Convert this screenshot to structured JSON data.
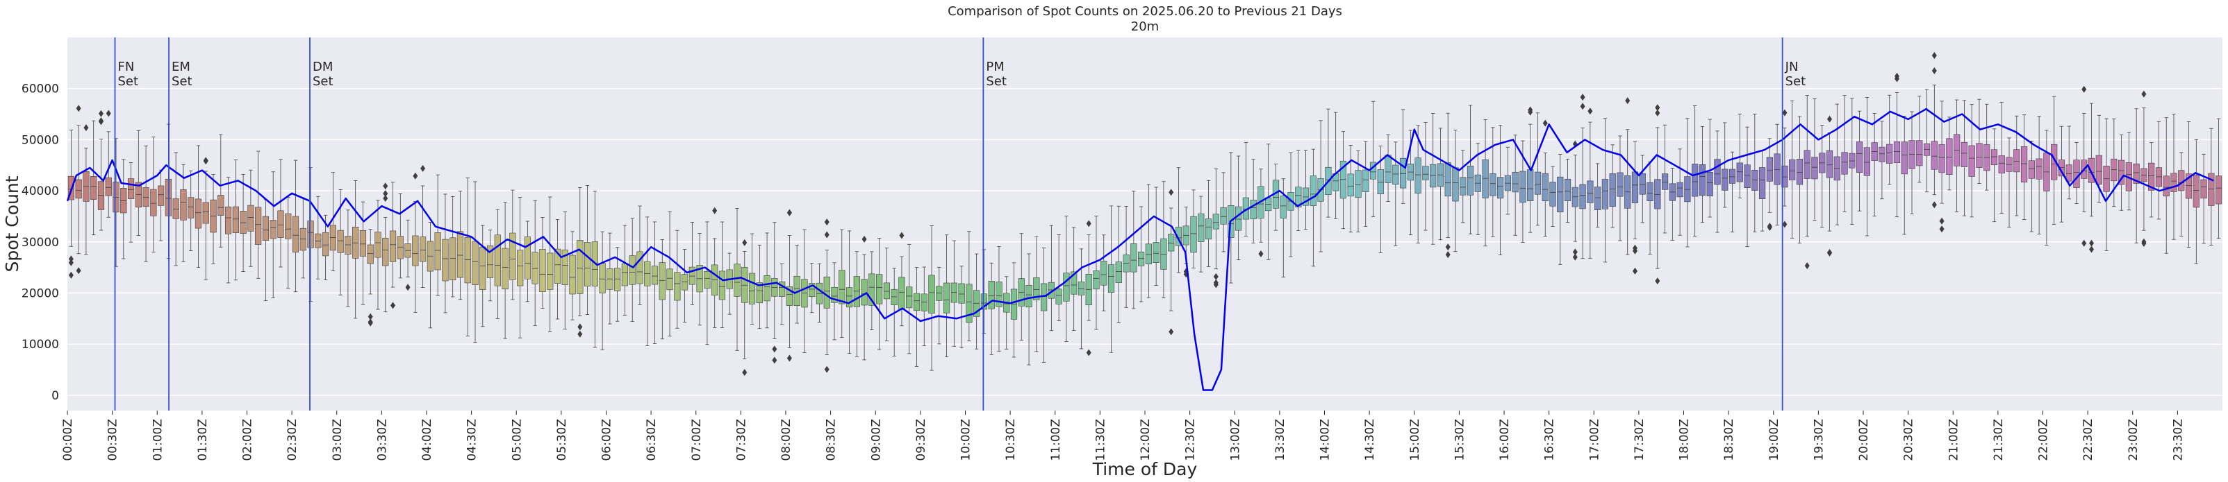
{
  "chart_data": {
    "type": "box",
    "title": "Comparison of Spot Counts on 2025.06.20 to Previous 21 Days",
    "subtitle": "20m",
    "xlabel": "Time of Day",
    "ylabel": "Spot Count",
    "ylim": [
      -3000,
      70000
    ],
    "yticks": [
      0,
      10000,
      20000,
      30000,
      40000,
      50000,
      60000
    ],
    "ytick_labels": [
      "0",
      "10000",
      "20000",
      "30000",
      "40000",
      "50000",
      "60000"
    ],
    "x_range_hours": [
      0,
      24
    ],
    "xtick_labels": [
      "00:00Z",
      "00:30Z",
      "01:00Z",
      "01:30Z",
      "02:00Z",
      "02:30Z",
      "03:00Z",
      "03:30Z",
      "04:00Z",
      "04:30Z",
      "05:00Z",
      "05:30Z",
      "06:00Z",
      "06:30Z",
      "07:00Z",
      "07:30Z",
      "08:00Z",
      "08:30Z",
      "09:00Z",
      "09:30Z",
      "10:00Z",
      "10:30Z",
      "11:00Z",
      "11:30Z",
      "12:00Z",
      "12:30Z",
      "13:00Z",
      "13:30Z",
      "14:00Z",
      "14:30Z",
      "15:00Z",
      "15:30Z",
      "16:00Z",
      "16:30Z",
      "17:00Z",
      "17:30Z",
      "18:00Z",
      "18:30Z",
      "19:00Z",
      "19:30Z",
      "20:00Z",
      "20:30Z",
      "21:00Z",
      "21:30Z",
      "22:00Z",
      "22:30Z",
      "23:00Z",
      "23:30Z"
    ],
    "bins_per_hour": 12,
    "events": [
      {
        "label": "FN\nSet",
        "hour": 0.53
      },
      {
        "label": "EM\nSet",
        "hour": 1.13
      },
      {
        "label": "DM\nSet",
        "hour": 2.7
      },
      {
        "label": "PM\nSet",
        "hour": 10.2
      },
      {
        "label": "JN\nSet",
        "hour": 19.1
      }
    ],
    "median_profile": {
      "hours": [
        0,
        0.5,
        1,
        1.5,
        2,
        2.5,
        3,
        3.5,
        4,
        4.5,
        5,
        5.5,
        6,
        6.5,
        7,
        7.5,
        8,
        8.5,
        9,
        9.5,
        10,
        10.5,
        11,
        11.5,
        12,
        12.5,
        13,
        13.5,
        14,
        14.5,
        15,
        15.5,
        16,
        16.5,
        17,
        17.5,
        18,
        18.5,
        19,
        19.5,
        20,
        20.5,
        21,
        21.5,
        22,
        22.5,
        23,
        23.5,
        24
      ],
      "values": [
        40000,
        39500,
        38500,
        36500,
        34500,
        32000,
        30000,
        28500,
        27500,
        26500,
        25500,
        24500,
        23500,
        22800,
        22200,
        21500,
        21000,
        20500,
        20000,
        19500,
        19000,
        19000,
        20000,
        22500,
        27000,
        31000,
        35000,
        38000,
        41000,
        42500,
        43000,
        42000,
        41000,
        40500,
        39500,
        40000,
        41000,
        42500,
        43500,
        44500,
        46500,
        48000,
        47500,
        46500,
        45000,
        43500,
        42500,
        41500,
        41000
      ]
    },
    "series": [
      {
        "name": "2025.06.20",
        "color": "#0000ee",
        "hours": [
          0,
          0.1,
          0.25,
          0.4,
          0.5,
          0.6,
          0.8,
          1.0,
          1.1,
          1.3,
          1.5,
          1.7,
          1.9,
          2.1,
          2.3,
          2.5,
          2.7,
          2.9,
          3.1,
          3.3,
          3.5,
          3.7,
          3.9,
          4.1,
          4.3,
          4.5,
          4.7,
          4.9,
          5.1,
          5.3,
          5.5,
          5.7,
          5.9,
          6.1,
          6.3,
          6.5,
          6.7,
          6.9,
          7.1,
          7.3,
          7.5,
          7.7,
          7.9,
          8.1,
          8.3,
          8.5,
          8.7,
          8.9,
          9.1,
          9.3,
          9.5,
          9.7,
          9.9,
          10.1,
          10.3,
          10.5,
          10.7,
          10.9,
          11.1,
          11.3,
          11.5,
          11.7,
          11.9,
          12.1,
          12.3,
          12.45,
          12.55,
          12.65,
          12.75,
          12.85,
          12.95,
          13.1,
          13.3,
          13.5,
          13.7,
          13.9,
          14.1,
          14.3,
          14.5,
          14.7,
          14.9,
          15.0,
          15.1,
          15.3,
          15.5,
          15.7,
          15.9,
          16.1,
          16.3,
          16.5,
          16.7,
          16.9,
          17.1,
          17.3,
          17.5,
          17.7,
          17.9,
          18.1,
          18.3,
          18.5,
          18.7,
          18.9,
          19.1,
          19.3,
          19.5,
          19.7,
          19.9,
          20.1,
          20.3,
          20.5,
          20.7,
          20.9,
          21.1,
          21.3,
          21.5,
          21.7,
          21.9,
          22.1,
          22.3,
          22.5,
          22.7,
          22.9,
          23.1,
          23.3,
          23.5,
          23.7,
          23.9
        ],
        "values": [
          38000,
          43000,
          44500,
          42000,
          46000,
          41500,
          41000,
          43000,
          45000,
          42500,
          44000,
          41000,
          42000,
          40000,
          37000,
          39500,
          38000,
          33000,
          38500,
          34000,
          37000,
          35500,
          38000,
          33000,
          32000,
          31000,
          28000,
          30500,
          29000,
          31000,
          27000,
          28500,
          25500,
          27000,
          25000,
          29000,
          27000,
          24000,
          25000,
          22500,
          23000,
          21500,
          22000,
          20000,
          21500,
          19000,
          18000,
          20000,
          15000,
          17000,
          14500,
          15500,
          15000,
          16000,
          18500,
          18000,
          19000,
          19500,
          22000,
          25000,
          26500,
          29000,
          32000,
          35000,
          33000,
          28000,
          12000,
          1000,
          1000,
          5000,
          34000,
          36000,
          38000,
          40000,
          37000,
          39000,
          43000,
          46000,
          44000,
          47000,
          44500,
          52000,
          48000,
          46000,
          44000,
          47000,
          49000,
          50000,
          44000,
          53000,
          47500,
          50000,
          48000,
          47000,
          43000,
          47000,
          45000,
          43000,
          44000,
          46000,
          47000,
          48000,
          50000,
          53000,
          50000,
          52000,
          54500,
          53000,
          55500,
          54000,
          56000,
          53500,
          55000,
          52000,
          53000,
          51500,
          49000,
          47000,
          41000,
          45000,
          38000,
          43000,
          41500,
          40000,
          41000,
          43500,
          42000
        ]
      }
    ],
    "boxes_note": "288 five-minute boxes (21-day distribution) coloured along a hue gradient; whiskers and outlier diamonds shown."
  }
}
